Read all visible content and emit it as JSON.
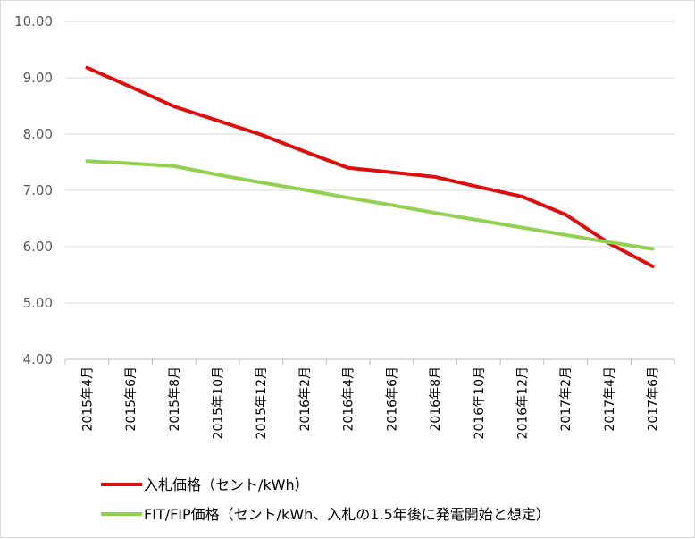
{
  "chart_data": {
    "type": "line",
    "title": "",
    "xlabel": "",
    "ylabel": "",
    "categories": [
      "2015年4月",
      "2015年6月",
      "2015年8月",
      "2015年10月",
      "2015年12月",
      "2016年2月",
      "2016年4月",
      "2016年6月",
      "2016年8月",
      "2016年10月",
      "2016年12月",
      "2017年2月",
      "2017年4月",
      "2017年6月"
    ],
    "ylim": [
      4.0,
      10.0
    ],
    "yticks": [
      "4.00",
      "5.00",
      "6.00",
      "7.00",
      "8.00",
      "9.00",
      "10.00"
    ],
    "grid": true,
    "legend_position": "bottom",
    "series": [
      {
        "name": "入札価格（セント/kWh）",
        "color": "#e00d0d",
        "values": [
          9.18,
          8.84,
          8.49,
          8.24,
          7.99,
          7.69,
          7.4,
          7.32,
          7.24,
          7.06,
          6.89,
          6.57,
          6.06,
          5.65
        ]
      },
      {
        "name": "FIT/FIP価格（セント/kWh、入札の1.5年後に発電開始と想定）",
        "color": "#92d050",
        "values": [
          7.52,
          7.48,
          7.43,
          7.28,
          7.14,
          7.01,
          6.87,
          6.74,
          6.6,
          6.47,
          6.34,
          6.21,
          6.08,
          5.96
        ]
      }
    ]
  }
}
